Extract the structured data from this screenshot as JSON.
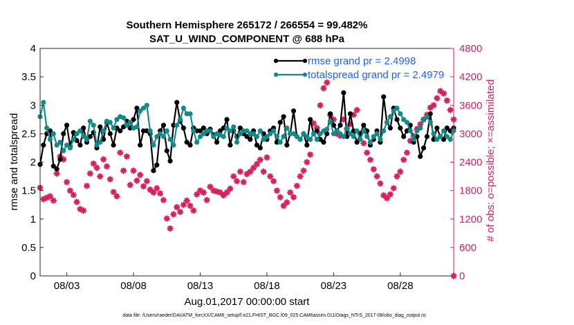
{
  "chart_data": {
    "type": "line",
    "title_line1": "Southern Hemisphere 265172 / 266554 = 99.482%",
    "title_line2": "SAT_U_WIND_COMPONENT @ 688 hPa",
    "xlabel": "Aug.01,2017 00:00:00 start",
    "ylabel_left": "rmse and totalspread",
    "ylabel_right": "# of obs: o=possible; ×=assimilated",
    "footer": "data file: /Users/raeder/DAI/ATM_forcXX/CAM6_setup/f.e21.FHIST_BGC.f09_025.CAM6assim.011/Diags_NTrS_2017-08/obs_diag_output.nc",
    "x_tick_labels": [
      "08/03",
      "08/08",
      "08/13",
      "08/18",
      "08/23",
      "08/28"
    ],
    "x_tick_values": [
      3,
      8,
      13,
      18,
      23,
      28
    ],
    "xlim": [
      1,
      32
    ],
    "ylim_left": [
      0,
      4
    ],
    "yticks_left": [
      "0",
      "0.5",
      "1",
      "1.5",
      "2",
      "2.5",
      "3",
      "3.5",
      "4"
    ],
    "ylim_right": [
      0,
      4800
    ],
    "yticks_right": [
      "0",
      "600",
      "1200",
      "1800",
      "2400",
      "3000",
      "3600",
      "4200",
      "4800"
    ],
    "colors": {
      "rmse": "#000000",
      "spread": "#138a8a",
      "obs": "#d6215e",
      "legend_text": "#1f5fff"
    },
    "series": [
      {
        "name": "rmse grand pr = 2.4998",
        "marker": "circle",
        "t0": 1.0,
        "dt": 0.25,
        "values": [
          1.96,
          2.3,
          2.5,
          2.55,
          1.93,
          1.88,
          2.05,
          2.5,
          2.65,
          2.28,
          2.52,
          2.38,
          2.3,
          2.6,
          2.35,
          2.45,
          2.52,
          2.25,
          2.62,
          2.4,
          2.7,
          2.5,
          2.3,
          2.6,
          2.55,
          2.62,
          2.72,
          2.6,
          2.75,
          2.95,
          2.3,
          2.55,
          2.55,
          2.5,
          1.85,
          1.95,
          2.55,
          2.65,
          2.2,
          2.02,
          2.65,
          3.05,
          2.72,
          2.6,
          2.35,
          2.3,
          2.6,
          2.55,
          2.55,
          2.6,
          2.5,
          2.58,
          2.48,
          2.35,
          2.55,
          2.6,
          2.75,
          2.3,
          2.55,
          2.45,
          2.6,
          2.5,
          2.45,
          2.4,
          2.55,
          2.3,
          2.25,
          2.5,
          2.4,
          2.55,
          2.6,
          2.35,
          2.7,
          2.8,
          2.3,
          2.5,
          2.9,
          2.45,
          2.4,
          2.5,
          2.3,
          2.75,
          2.5,
          2.55,
          2.4,
          2.35,
          2.5,
          2.85,
          2.65,
          2.55,
          2.65,
          3.22,
          2.45,
          2.85,
          2.55,
          2.35,
          2.5,
          2.65,
          2.55,
          2.3,
          2.4,
          2.55,
          2.35,
          3.15,
          2.7,
          2.6,
          2.95,
          2.75,
          2.6,
          2.45,
          2.55,
          2.65,
          2.35,
          2.45,
          2.1,
          2.25,
          2.45,
          2.85,
          2.4,
          2.6,
          2.45,
          2.4,
          2.6,
          2.55,
          2.6,
          2.7,
          2.55,
          2.6
        ]
      },
      {
        "name": "totalspread grand pr = 2.4979",
        "marker": "circle",
        "t0": 1.0,
        "dt": 0.25,
        "values": [
          2.8,
          3.05,
          2.6,
          2.4,
          2.5,
          2.3,
          2.35,
          2.2,
          2.3,
          2.25,
          2.4,
          2.5,
          2.55,
          2.45,
          2.4,
          2.72,
          2.65,
          2.3,
          2.35,
          2.55,
          2.72,
          2.7,
          2.6,
          2.75,
          2.8,
          2.78,
          2.65,
          2.7,
          2.6,
          2.62,
          2.9,
          2.95,
          3.0,
          2.55,
          2.3,
          2.45,
          2.5,
          2.45,
          2.55,
          2.4,
          2.3,
          2.65,
          2.75,
          2.95,
          2.85,
          2.85,
          2.55,
          2.35,
          2.45,
          2.5,
          2.55,
          2.55,
          2.45,
          2.5,
          2.48,
          2.45,
          2.6,
          2.55,
          2.62,
          2.35,
          2.5,
          2.55,
          2.55,
          2.5,
          2.5,
          2.45,
          2.55,
          2.4,
          2.45,
          2.5,
          2.55,
          2.45,
          2.35,
          2.45,
          2.6,
          2.5,
          2.5,
          2.45,
          2.4,
          2.5,
          2.45,
          2.4,
          2.5,
          2.4,
          2.5,
          2.55,
          2.58,
          2.72,
          2.5,
          2.55,
          2.5,
          2.45,
          2.6,
          2.5,
          2.45,
          2.55,
          2.4,
          2.55,
          2.45,
          2.35,
          2.45,
          2.5,
          2.4,
          2.55,
          2.7,
          2.8,
          2.9,
          2.95,
          2.85,
          2.75,
          2.7,
          2.55,
          2.4,
          2.55,
          2.6,
          2.75,
          2.8,
          2.7,
          2.5,
          2.4,
          2.45,
          2.55,
          2.45,
          2.4,
          2.55,
          2.5,
          2.45,
          2.4
        ]
      },
      {
        "name": "# of obs assimilated",
        "marker": "star",
        "axis": "right",
        "t0": 1.0,
        "dt": 0.25,
        "values": [
          1860,
          1620,
          1650,
          1680,
          1590,
          2160,
          2520,
          2460,
          1980,
          1800,
          1710,
          1560,
          1410,
          1380,
          1900,
          2160,
          2370,
          2280,
          2100,
          2460,
          2310,
          2040,
          1770,
          1680,
          2600,
          2220,
          2520,
          1920,
          2220,
          2010,
          2130,
          1890,
          2000,
          1820,
          1760,
          1850,
          1740,
          1600,
          1210,
          1000,
          1300,
          1450,
          1350,
          1500,
          1590,
          1480,
          1380,
          1720,
          1800,
          1760,
          1600,
          1880,
          1800,
          1780,
          1760,
          1700,
          1760,
          1840,
          2100,
          2000,
          2200,
          1980,
          2150,
          2200,
          2280,
          2360,
          2450,
          2200,
          2500,
          2100,
          2000,
          1800,
          1660,
          1480,
          1550,
          1760,
          1660,
          1900,
          2100,
          2220,
          2400,
          2560,
          3220,
          3120,
          3600,
          3960,
          4080,
          3400,
          3300,
          3000,
          2960,
          3300,
          3100,
          3200,
          3400,
          3500,
          3000,
          2800,
          2600,
          2450,
          2250,
          2100,
          1950,
          1700,
          1640,
          1720,
          1850,
          2100,
          2200,
          2450,
          2600,
          2850,
          2950,
          3100,
          3200,
          3300,
          3400,
          3550,
          3600,
          3750,
          3900,
          3850,
          3700,
          3500,
          3300,
          3100,
          3200,
          3100
        ]
      }
    ],
    "legend": [
      {
        "label": "rmse grand pr = 2.4998",
        "series": 0
      },
      {
        "label": "totalspread grand pr = 2.4979",
        "series": 1
      }
    ],
    "extra_point_right": {
      "x": 32.0,
      "y": 0
    }
  }
}
